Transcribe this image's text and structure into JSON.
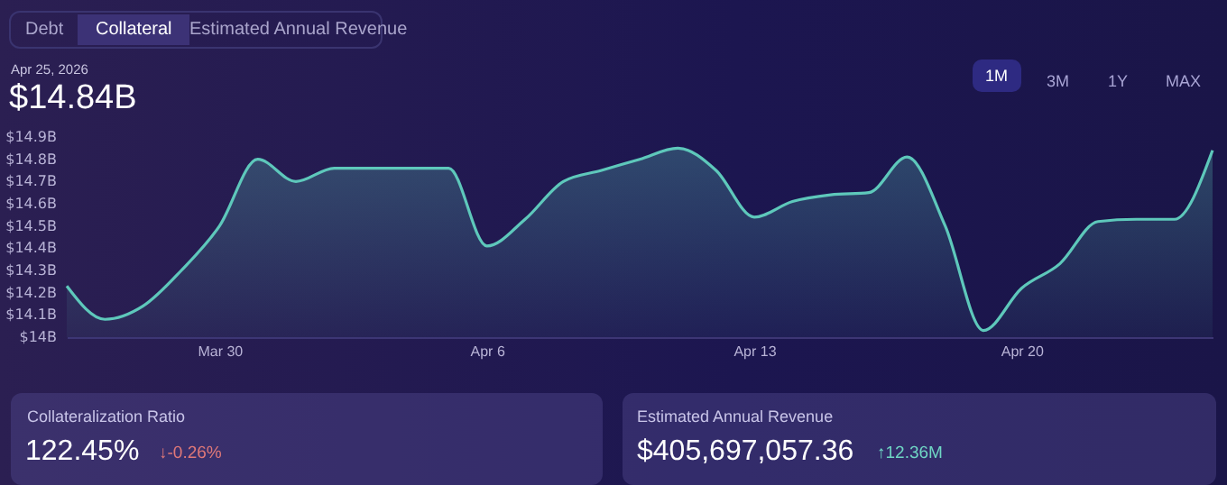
{
  "chart_data": {
    "type": "area",
    "x": [
      "2026-03-26",
      "2026-03-27",
      "2026-03-28",
      "2026-03-29",
      "2026-03-30",
      "2026-03-31",
      "2026-04-01",
      "2026-04-02",
      "2026-04-03",
      "2026-04-04",
      "2026-04-05",
      "2026-04-06",
      "2026-04-07",
      "2026-04-08",
      "2026-04-09",
      "2026-04-10",
      "2026-04-11",
      "2026-04-12",
      "2026-04-13",
      "2026-04-14",
      "2026-04-15",
      "2026-04-16",
      "2026-04-17",
      "2026-04-18",
      "2026-04-19",
      "2026-04-20",
      "2026-04-21",
      "2026-04-22",
      "2026-04-23",
      "2026-04-24",
      "2026-04-25"
    ],
    "series": [
      {
        "color": "#5ec8bb",
        "values": [
          14.23,
          14.08,
          14.14,
          14.3,
          14.5,
          14.8,
          14.7,
          14.76,
          14.76,
          14.76,
          14.76,
          14.41,
          14.53,
          14.7,
          14.75,
          14.8,
          14.85,
          14.75,
          14.54,
          14.61,
          14.64,
          14.65,
          14.81,
          14.5,
          14.03,
          14.22,
          14.33,
          14.52,
          14.53,
          14.53,
          14.84
        ]
      }
    ],
    "xticks": [
      {
        "value": "2026-03-30",
        "label": "Mar 30"
      },
      {
        "value": "2026-04-06",
        "label": "Apr 6"
      },
      {
        "value": "2026-04-13",
        "label": "Apr 13"
      },
      {
        "value": "2026-04-20",
        "label": "Apr 20"
      }
    ],
    "ylim": [
      14,
      14.9
    ],
    "xlim": [
      "2026-03-26",
      "2026-04-25"
    ],
    "yticks": [
      {
        "value": 14,
        "label": "$14B"
      },
      {
        "value": 14.1,
        "label": "$14.1B"
      },
      {
        "value": 14.2,
        "label": "$14.2B"
      },
      {
        "value": 14.3,
        "label": "$14.3B"
      },
      {
        "value": 14.4,
        "label": "$14.4B"
      },
      {
        "value": 14.5,
        "label": "$14.5B"
      },
      {
        "value": 14.6,
        "label": "$14.6B"
      },
      {
        "value": 14.7,
        "label": "$14.7B"
      },
      {
        "value": 14.8,
        "label": "$14.8B"
      },
      {
        "value": 14.9,
        "label": "$14.9B"
      }
    ],
    "grid": false,
    "annotations": [
      "Debt",
      "Collateral",
      "Estimated Annual Revenue",
      "Apr 25, 2026",
      "$14.84B",
      "1M",
      "3M",
      "1Y",
      "MAX",
      "Collateralization Ratio",
      "122.45%",
      "↓-0.26%",
      "Estimated Annual Revenue",
      "$405,697,057.36",
      "↑12.36M"
    ]
  }
}
